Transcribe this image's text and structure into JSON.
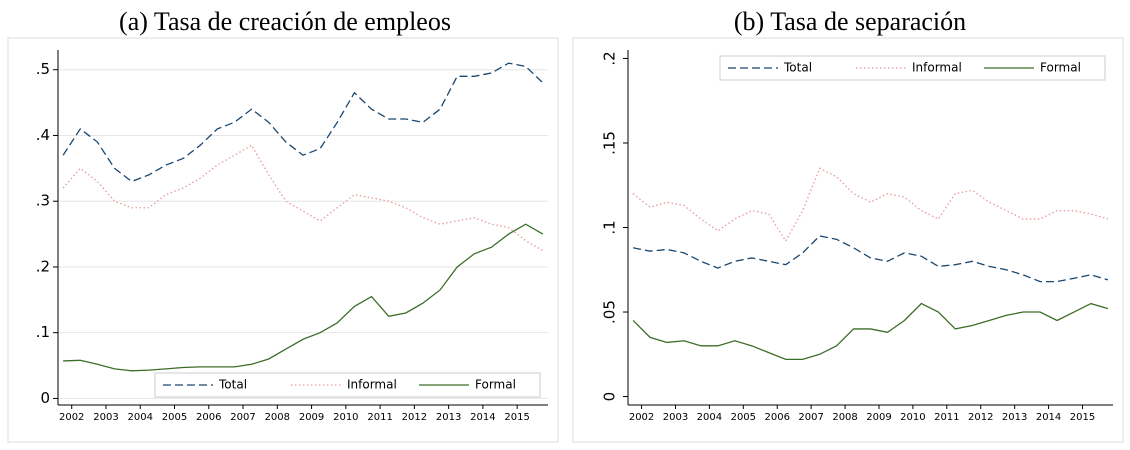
{
  "chart_data": [
    {
      "type": "line",
      "title": "(a) Tasa de creación de empleos",
      "x": [
        2001.75,
        2002.25,
        2002.75,
        2003.25,
        2003.75,
        2004.25,
        2004.75,
        2005.25,
        2005.75,
        2006.25,
        2006.75,
        2007.25,
        2007.75,
        2008.25,
        2008.75,
        2009.25,
        2009.75,
        2010.25,
        2010.75,
        2011.25,
        2011.75,
        2012.25,
        2012.75,
        2013.25,
        2013.75,
        2014.25,
        2014.75,
        2015.25,
        2015.75
      ],
      "series": [
        {
          "name": "Total",
          "color": "#1a476f",
          "style": "dashed",
          "values": [
            0.37,
            0.41,
            0.39,
            0.35,
            0.33,
            0.34,
            0.355,
            0.365,
            0.385,
            0.41,
            0.42,
            0.44,
            0.42,
            0.39,
            0.37,
            0.38,
            0.42,
            0.465,
            0.44,
            0.425,
            0.425,
            0.42,
            0.44,
            0.49,
            0.49,
            0.495,
            0.51,
            0.505,
            0.48
          ]
        },
        {
          "name": "Informal",
          "color": "#e79a9a",
          "style": "dotted",
          "values": [
            0.32,
            0.35,
            0.33,
            0.3,
            0.29,
            0.29,
            0.31,
            0.32,
            0.335,
            0.355,
            0.37,
            0.385,
            0.34,
            0.3,
            0.285,
            0.27,
            0.29,
            0.31,
            0.305,
            0.3,
            0.29,
            0.275,
            0.265,
            0.27,
            0.275,
            0.265,
            0.26,
            0.24,
            0.225
          ]
        },
        {
          "name": "Formal",
          "color": "#3c6e28",
          "style": "solid",
          "values": [
            0.057,
            0.058,
            0.052,
            0.045,
            0.042,
            0.043,
            0.045,
            0.047,
            0.048,
            0.048,
            0.048,
            0.052,
            0.06,
            0.075,
            0.09,
            0.1,
            0.115,
            0.14,
            0.155,
            0.125,
            0.13,
            0.145,
            0.165,
            0.2,
            0.22,
            0.23,
            0.25,
            0.265,
            0.25
          ]
        }
      ],
      "xlim": [
        2001.6,
        2015.9
      ],
      "xticks": [
        2002,
        2003,
        2004,
        2005,
        2006,
        2007,
        2008,
        2009,
        2010,
        2011,
        2012,
        2013,
        2014,
        2015
      ],
      "ylim": [
        -0.01,
        0.53
      ],
      "yticks": [
        0,
        {
          "value": 0.1,
          "label": ".1"
        },
        {
          "value": 0.2,
          "label": ".2"
        },
        {
          "value": 0.3,
          "label": ".3"
        },
        {
          "value": 0.4,
          "label": ".4"
        },
        {
          "value": 0.5,
          "label": ".5"
        }
      ],
      "grid": true,
      "legend": "lower right",
      "rotate_yticks": false
    },
    {
      "type": "line",
      "title": "(b) Tasa de separación",
      "x": [
        2001.75,
        2002.25,
        2002.75,
        2003.25,
        2003.75,
        2004.25,
        2004.75,
        2005.25,
        2005.75,
        2006.25,
        2006.75,
        2007.25,
        2007.75,
        2008.25,
        2008.75,
        2009.25,
        2009.75,
        2010.25,
        2010.75,
        2011.25,
        2011.75,
        2012.25,
        2012.75,
        2013.25,
        2013.75,
        2014.25,
        2014.75,
        2015.25,
        2015.75
      ],
      "series": [
        {
          "name": "Total",
          "color": "#1a476f",
          "style": "dashed",
          "values": [
            0.088,
            0.086,
            0.087,
            0.085,
            0.08,
            0.076,
            0.08,
            0.082,
            0.08,
            0.078,
            0.085,
            0.095,
            0.093,
            0.088,
            0.082,
            0.08,
            0.085,
            0.083,
            0.077,
            0.078,
            0.08,
            0.077,
            0.075,
            0.072,
            0.068,
            0.068,
            0.07,
            0.072,
            0.069
          ]
        },
        {
          "name": "Informal",
          "color": "#e79a9a",
          "style": "dotted",
          "values": [
            0.12,
            0.112,
            0.115,
            0.113,
            0.105,
            0.098,
            0.105,
            0.11,
            0.108,
            0.092,
            0.11,
            0.135,
            0.13,
            0.12,
            0.115,
            0.12,
            0.118,
            0.11,
            0.105,
            0.12,
            0.122,
            0.115,
            0.11,
            0.105,
            0.105,
            0.11,
            0.11,
            0.108,
            0.105
          ]
        },
        {
          "name": "Formal",
          "color": "#3c6e28",
          "style": "solid",
          "values": [
            0.045,
            0.035,
            0.032,
            0.033,
            0.03,
            0.03,
            0.033,
            0.03,
            0.026,
            0.022,
            0.022,
            0.025,
            0.03,
            0.04,
            0.04,
            0.038,
            0.045,
            0.055,
            0.05,
            0.04,
            0.042,
            0.045,
            0.048,
            0.05,
            0.05,
            0.045,
            0.05,
            0.055,
            0.052
          ]
        }
      ],
      "xlim": [
        2001.6,
        2015.9
      ],
      "xticks": [
        2002,
        2003,
        2004,
        2005,
        2006,
        2007,
        2008,
        2009,
        2010,
        2011,
        2012,
        2013,
        2014,
        2015
      ],
      "ylim": [
        -0.005,
        0.205
      ],
      "yticks": [
        0,
        {
          "value": 0.05,
          "label": ".05"
        },
        {
          "value": 0.1,
          "label": ".1"
        },
        {
          "value": 0.15,
          "label": ".15"
        },
        {
          "value": 0.2,
          "label": ".2"
        }
      ],
      "grid": false,
      "legend": "upper right",
      "rotate_yticks": true
    }
  ]
}
